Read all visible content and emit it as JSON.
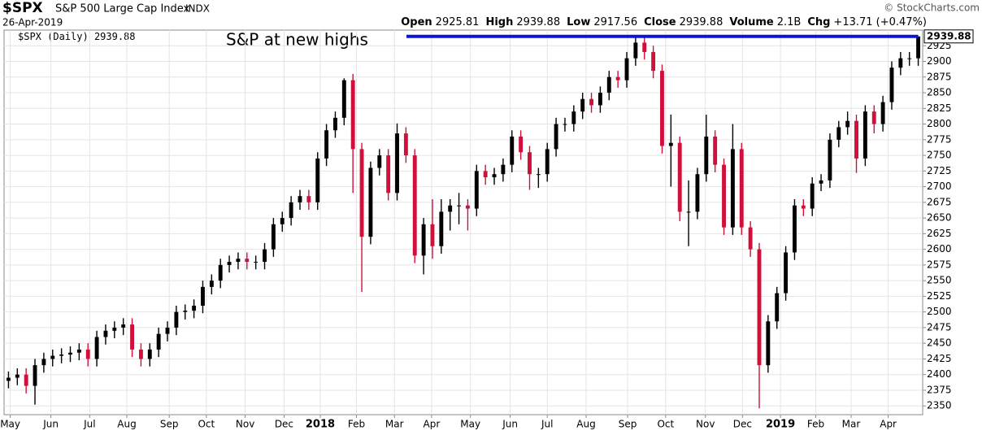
{
  "chart_data": {
    "type": "candlestick",
    "title": "$SPX",
    "subtitle": "S&P 500 Large Cap Index",
    "exchange": "INDX",
    "date": "26-Apr-2019",
    "credit": "© StockCharts.com",
    "quote": [
      {
        "label": "Open",
        "value": 2925.81
      },
      {
        "label": "High",
        "value": 2939.88
      },
      {
        "label": "Low",
        "value": 2917.56
      },
      {
        "label": "Close",
        "value": 2939.88
      },
      {
        "label": "Volume",
        "value": "2.1B"
      },
      {
        "label": "Chg",
        "value": "+13.71 (+0.47%)"
      }
    ],
    "legend": "$SPX (Daily)",
    "annotation": "S&P at new highs",
    "annotation_color": "#0a14d6",
    "up_color": "#000000",
    "down_color": "#d0103a",
    "grid": true,
    "xlim": [
      -0.5,
      103.5
    ],
    "ylim": [
      2336,
      2950
    ],
    "yticks": [
      2350,
      2375,
      2400,
      2425,
      2450,
      2475,
      2500,
      2525,
      2550,
      2575,
      2600,
      2625,
      2650,
      2675,
      2700,
      2725,
      2750,
      2775,
      2800,
      2825,
      2850,
      2875,
      2900,
      2925
    ],
    "xticks": [
      {
        "value": 0.2,
        "label": "May"
      },
      {
        "value": 4.8,
        "label": "Jun"
      },
      {
        "value": 9.2,
        "label": "Jul"
      },
      {
        "value": 13.4,
        "label": "Aug"
      },
      {
        "value": 18.2,
        "label": "Sep"
      },
      {
        "value": 22.4,
        "label": "Oct"
      },
      {
        "value": 26.8,
        "label": "Nov"
      },
      {
        "value": 31.2,
        "label": "Dec"
      },
      {
        "value": 35.3,
        "label": "2018"
      },
      {
        "value": 39.4,
        "label": "Feb"
      },
      {
        "value": 43.7,
        "label": "Mar"
      },
      {
        "value": 47.9,
        "label": "Apr"
      },
      {
        "value": 52.3,
        "label": "May"
      },
      {
        "value": 56.8,
        "label": "Jun"
      },
      {
        "value": 61,
        "label": "Jul"
      },
      {
        "value": 65.4,
        "label": "Aug"
      },
      {
        "value": 70.1,
        "label": "Sep"
      },
      {
        "value": 74.4,
        "label": "Oct"
      },
      {
        "value": 78.9,
        "label": "Nov"
      },
      {
        "value": 83.1,
        "label": "Dec"
      },
      {
        "value": 87.4,
        "label": "2019"
      },
      {
        "value": 91.4,
        "label": "Feb"
      },
      {
        "value": 95.4,
        "label": "Mar"
      },
      {
        "value": 99.6,
        "label": "Apr"
      }
    ],
    "open": [
      2390,
      2395,
      2400,
      2382,
      2415,
      2425,
      2430,
      2432,
      2435,
      2440,
      2425,
      2460,
      2470,
      2475,
      2480,
      2440,
      2425,
      2440,
      2465,
      2475,
      2500,
      2502,
      2510,
      2540,
      2550,
      2575,
      2580,
      2585,
      2580,
      2580,
      2600,
      2640,
      2650,
      2675,
      2685,
      2675,
      2745,
      2790,
      2810,
      2870,
      2760,
      2620,
      2730,
      2750,
      2690,
      2785,
      2750,
      2590,
      2640,
      2605,
      2660,
      2670,
      2670,
      2665,
      2725,
      2715,
      2720,
      2735,
      2780,
      2755,
      2720,
      2720,
      2760,
      2800,
      2800,
      2820,
      2840,
      2830,
      2850,
      2875,
      2870,
      2905,
      2930,
      2915,
      2885,
      2765,
      2770,
      2660,
      2660,
      2720,
      2780,
      2735,
      2635,
      2760,
      2635,
      2600,
      2415,
      2485,
      2530,
      2595,
      2670,
      2665,
      2705,
      2710,
      2775,
      2795,
      2805,
      2745,
      2820,
      2800,
      2835,
      2890,
      2905,
      2905
    ],
    "high": [
      2405,
      2410,
      2410,
      2425,
      2435,
      2440,
      2442,
      2445,
      2450,
      2450,
      2470,
      2480,
      2485,
      2490,
      2490,
      2450,
      2450,
      2475,
      2485,
      2510,
      2512,
      2520,
      2550,
      2560,
      2585,
      2590,
      2595,
      2595,
      2590,
      2610,
      2650,
      2660,
      2685,
      2695,
      2695,
      2755,
      2800,
      2820,
      2873,
      2880,
      2770,
      2740,
      2760,
      2760,
      2801,
      2795,
      2760,
      2650,
      2680,
      2680,
      2680,
      2690,
      2680,
      2735,
      2735,
      2730,
      2745,
      2790,
      2790,
      2765,
      2730,
      2770,
      2810,
      2810,
      2830,
      2850,
      2850,
      2860,
      2885,
      2885,
      2915,
      2940,
      2940,
      2925,
      2895,
      2815,
      2780,
      2710,
      2730,
      2815,
      2790,
      2745,
      2800,
      2770,
      2645,
      2610,
      2495,
      2540,
      2605,
      2680,
      2680,
      2715,
      2720,
      2785,
      2805,
      2820,
      2815,
      2830,
      2830,
      2845,
      2900,
      2915,
      2915,
      2939.88
    ],
    "low": [
      2378,
      2383,
      2370,
      2352,
      2403,
      2413,
      2418,
      2420,
      2423,
      2413,
      2413,
      2448,
      2458,
      2463,
      2428,
      2413,
      2413,
      2428,
      2453,
      2463,
      2488,
      2490,
      2498,
      2528,
      2538,
      2563,
      2568,
      2568,
      2568,
      2568,
      2588,
      2628,
      2638,
      2663,
      2663,
      2663,
      2733,
      2778,
      2798,
      2690,
      2532,
      2608,
      2718,
      2678,
      2678,
      2738,
      2578,
      2560,
      2585,
      2593,
      2630,
      2640,
      2630,
      2653,
      2703,
      2703,
      2708,
      2723,
      2743,
      2695,
      2698,
      2708,
      2748,
      2788,
      2788,
      2808,
      2818,
      2818,
      2838,
      2858,
      2858,
      2893,
      2903,
      2873,
      2753,
      2700,
      2645,
      2605,
      2648,
      2708,
      2723,
      2623,
      2623,
      2623,
      2588,
      2346,
      2403,
      2473,
      2518,
      2583,
      2653,
      2653,
      2693,
      2698,
      2763,
      2783,
      2722,
      2733,
      2785,
      2788,
      2823,
      2878,
      2893,
      2893
    ],
    "close": [
      2395,
      2400,
      2382,
      2415,
      2425,
      2430,
      2432,
      2435,
      2440,
      2425,
      2460,
      2470,
      2475,
      2480,
      2440,
      2425,
      2440,
      2465,
      2475,
      2500,
      2502,
      2510,
      2540,
      2550,
      2575,
      2580,
      2585,
      2580,
      2580,
      2600,
      2640,
      2650,
      2675,
      2685,
      2675,
      2745,
      2790,
      2810,
      2870,
      2760,
      2620,
      2730,
      2750,
      2690,
      2785,
      2750,
      2590,
      2640,
      2605,
      2660,
      2670,
      2670,
      2665,
      2725,
      2715,
      2720,
      2735,
      2780,
      2755,
      2720,
      2720,
      2760,
      2800,
      2800,
      2820,
      2840,
      2830,
      2850,
      2875,
      2870,
      2905,
      2930,
      2915,
      2885,
      2765,
      2770,
      2660,
      2660,
      2720,
      2780,
      2735,
      2635,
      2760,
      2635,
      2600,
      2415,
      2485,
      2530,
      2595,
      2670,
      2665,
      2705,
      2710,
      2775,
      2795,
      2805,
      2745,
      2820,
      2800,
      2835,
      2890,
      2905,
      2905,
      2939.88
    ]
  }
}
